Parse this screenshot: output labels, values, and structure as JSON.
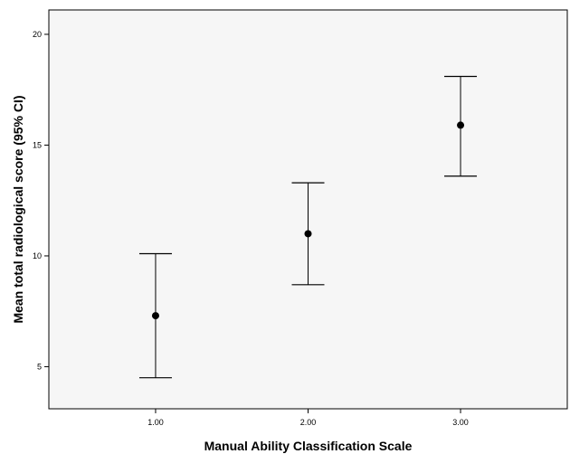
{
  "chart_data": {
    "type": "scatter",
    "title": "",
    "xlabel": "Manual Ability Classification Scale",
    "ylabel": "Mean total radiological score (95% CI)",
    "categories": [
      "1.00",
      "2.00",
      "3.00"
    ],
    "x": [
      1,
      2,
      3
    ],
    "series": [
      {
        "means": [
          7.3,
          11.0,
          15.9
        ],
        "ci_lower": [
          4.5,
          8.7,
          13.6
        ],
        "ci_upper": [
          10.1,
          13.3,
          18.1
        ]
      }
    ],
    "xlim": [
      0.3,
      3.7
    ],
    "ylim": [
      3.1,
      21.1
    ],
    "yticks": [
      5,
      10,
      15,
      20
    ],
    "grid": false,
    "legend": "none",
    "colors": {
      "plot_background": "#f6f6f6",
      "marker": "#000000",
      "error_bar": "#000000",
      "frame": "#000000"
    }
  }
}
